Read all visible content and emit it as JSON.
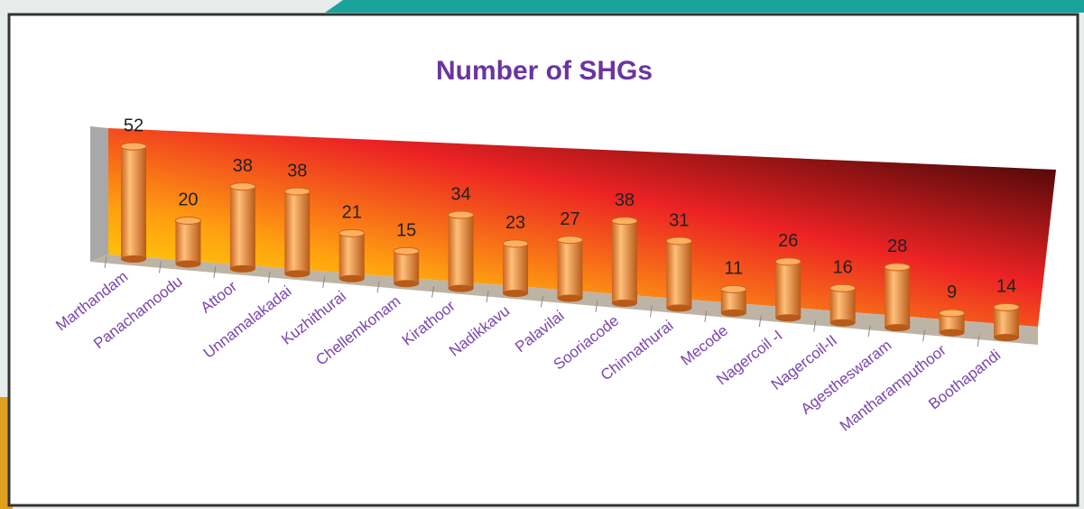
{
  "chart_data": {
    "type": "bar",
    "title": "Number of SHGs",
    "categories": [
      "Marthandam",
      "Panachamoodu",
      "Attoor",
      "Unnamalakadai",
      "Kuzhithurai",
      "Chellemkonam",
      "Kirathoor",
      "Nadikkavu",
      "Palavilai",
      "Sooriacode",
      "Chinnathurai",
      "Mecode",
      "Nagercoil -I",
      "Nagercoil-II",
      "Agestheswaram",
      "Mantharamputhoor",
      "Boothapandi"
    ],
    "values": [
      52,
      20,
      38,
      38,
      21,
      15,
      34,
      23,
      27,
      38,
      31,
      11,
      26,
      16,
      28,
      9,
      14
    ],
    "color": "#f5a04a"
  }
}
